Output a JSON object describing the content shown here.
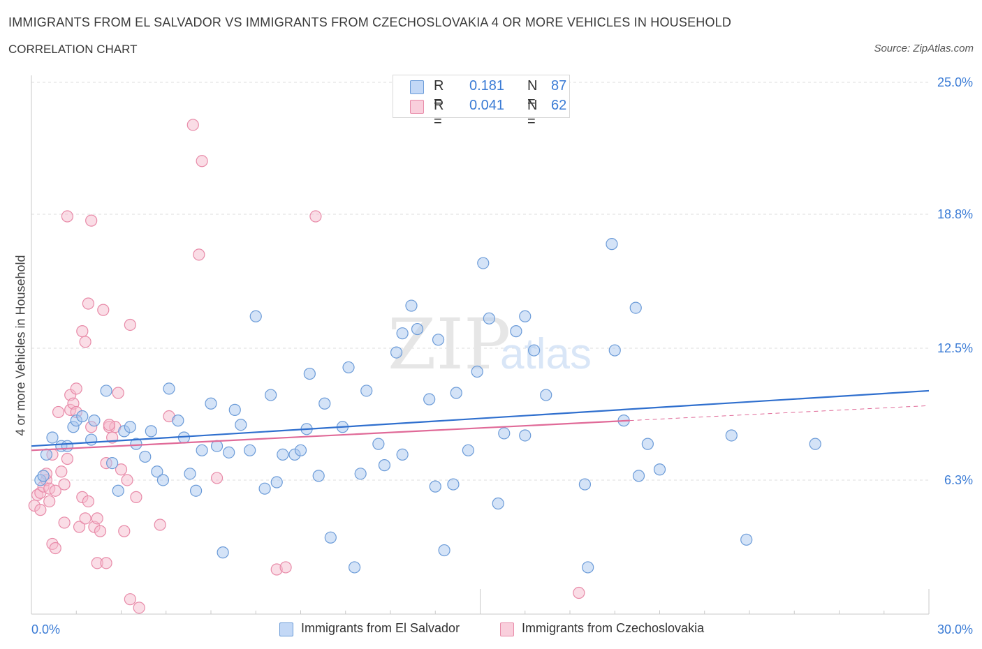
{
  "header": {
    "title": "IMMIGRANTS FROM EL SALVADOR VS IMMIGRANTS FROM CZECHOSLOVAKIA 4 OR MORE VEHICLES IN HOUSEHOLD",
    "subtitle": "CORRELATION CHART",
    "source": "Source: ZipAtlas.com"
  },
  "colors": {
    "blue_fill": "#aac8f0",
    "blue_stroke": "#6b9bd8",
    "blue_line": "#2f6fce",
    "pink_fill": "#f6bccd",
    "pink_stroke": "#e88aa8",
    "pink_line": "#e06a98",
    "axis_label": "#3a7bd5",
    "grid": "#dcdcdc"
  },
  "legend": {
    "rows": [
      {
        "r_label": "R =",
        "r_value": "0.181",
        "n_label": "N =",
        "n_value": "87"
      },
      {
        "r_label": "R =",
        "r_value": "0.041",
        "n_label": "N =",
        "n_value": "62"
      }
    ]
  },
  "bottom_legend": {
    "series1": "Immigrants from El Salvador",
    "series2": "Immigrants from Czechoslovakia"
  },
  "watermark": {
    "zip": "ZIP",
    "atlas": "atlas"
  },
  "chart_data": {
    "type": "scatter",
    "title": "IMMIGRANTS FROM EL SALVADOR VS IMMIGRANTS FROM CZECHOSLOVAKIA 4 OR MORE VEHICLES IN HOUSEHOLD",
    "xlabel": "",
    "ylabel": "4 or more Vehicles in Household",
    "xlim": [
      0,
      30
    ],
    "ylim": [
      0,
      25
    ],
    "x_tick_labels": [
      "0.0%",
      "30.0%"
    ],
    "y_ticks": [
      6.3,
      12.5,
      18.8,
      25.0
    ],
    "y_tick_labels": [
      "6.3%",
      "12.5%",
      "18.8%",
      "25.0%"
    ],
    "grid": true,
    "legend_position": "top-center",
    "series": [
      {
        "name": "Immigrants from El Salvador",
        "r": 0.181,
        "n": 87,
        "trend": {
          "x": [
            0,
            30
          ],
          "y": [
            7.9,
            10.5
          ]
        },
        "points": [
          [
            0.3,
            6.3
          ],
          [
            0.4,
            6.5
          ],
          [
            0.5,
            7.5
          ],
          [
            0.7,
            8.3
          ],
          [
            1.0,
            7.9
          ],
          [
            1.2,
            7.9
          ],
          [
            1.4,
            8.8
          ],
          [
            1.5,
            9.1
          ],
          [
            1.7,
            9.3
          ],
          [
            2.0,
            8.2
          ],
          [
            2.1,
            9.1
          ],
          [
            2.5,
            10.5
          ],
          [
            2.7,
            7.1
          ],
          [
            2.9,
            5.8
          ],
          [
            3.1,
            8.6
          ],
          [
            3.3,
            8.8
          ],
          [
            3.5,
            8.0
          ],
          [
            3.8,
            7.4
          ],
          [
            4.0,
            8.6
          ],
          [
            4.2,
            6.7
          ],
          [
            4.4,
            6.3
          ],
          [
            4.6,
            10.6
          ],
          [
            4.9,
            9.1
          ],
          [
            5.1,
            8.3
          ],
          [
            5.3,
            6.6
          ],
          [
            5.5,
            5.8
          ],
          [
            5.7,
            7.7
          ],
          [
            6.0,
            9.9
          ],
          [
            6.2,
            7.9
          ],
          [
            6.4,
            2.9
          ],
          [
            6.6,
            7.6
          ],
          [
            6.8,
            9.6
          ],
          [
            7.0,
            8.9
          ],
          [
            7.3,
            7.7
          ],
          [
            7.5,
            14.0
          ],
          [
            7.8,
            5.9
          ],
          [
            8.0,
            10.3
          ],
          [
            8.2,
            6.2
          ],
          [
            8.4,
            7.5
          ],
          [
            8.8,
            7.5
          ],
          [
            9.0,
            7.7
          ],
          [
            9.2,
            8.7
          ],
          [
            9.3,
            11.3
          ],
          [
            9.6,
            6.5
          ],
          [
            9.8,
            9.9
          ],
          [
            10.0,
            3.6
          ],
          [
            10.4,
            8.8
          ],
          [
            10.6,
            11.6
          ],
          [
            10.8,
            2.2
          ],
          [
            11.0,
            6.6
          ],
          [
            11.2,
            10.5
          ],
          [
            11.6,
            8.0
          ],
          [
            11.8,
            7.0
          ],
          [
            12.2,
            12.3
          ],
          [
            12.4,
            13.2
          ],
          [
            12.4,
            7.5
          ],
          [
            12.7,
            14.5
          ],
          [
            12.9,
            13.4
          ],
          [
            13.3,
            10.1
          ],
          [
            13.5,
            6.0
          ],
          [
            13.6,
            12.9
          ],
          [
            13.8,
            3.0
          ],
          [
            14.1,
            6.1
          ],
          [
            14.2,
            10.4
          ],
          [
            14.6,
            7.7
          ],
          [
            14.9,
            11.4
          ],
          [
            15.1,
            16.5
          ],
          [
            15.3,
            13.9
          ],
          [
            15.6,
            5.2
          ],
          [
            15.8,
            8.5
          ],
          [
            16.2,
            13.3
          ],
          [
            16.5,
            14.0
          ],
          [
            16.5,
            8.4
          ],
          [
            16.8,
            12.4
          ],
          [
            17.2,
            10.3
          ],
          [
            18.5,
            6.1
          ],
          [
            18.6,
            2.2
          ],
          [
            19.4,
            17.4
          ],
          [
            19.5,
            12.4
          ],
          [
            19.8,
            9.1
          ],
          [
            20.2,
            14.4
          ],
          [
            20.3,
            6.5
          ],
          [
            20.6,
            8.0
          ],
          [
            21.0,
            6.8
          ],
          [
            23.4,
            8.4
          ],
          [
            23.9,
            3.5
          ],
          [
            26.2,
            8.0
          ]
        ]
      },
      {
        "name": "Immigrants from Czechoslovakia",
        "r": 0.041,
        "n": 62,
        "trend": {
          "x": [
            0,
            20
          ],
          "y": [
            7.7,
            9.1
          ]
        },
        "trend_dashed": {
          "x": [
            20,
            30
          ],
          "y": [
            9.1,
            9.8
          ]
        },
        "points": [
          [
            0.1,
            5.1
          ],
          [
            0.2,
            5.6
          ],
          [
            0.3,
            5.7
          ],
          [
            0.4,
            6.0
          ],
          [
            0.5,
            6.3
          ],
          [
            0.5,
            6.6
          ],
          [
            0.6,
            5.9
          ],
          [
            0.7,
            7.5
          ],
          [
            0.7,
            3.3
          ],
          [
            0.8,
            3.1
          ],
          [
            0.9,
            9.5
          ],
          [
            1.0,
            6.7
          ],
          [
            1.1,
            6.1
          ],
          [
            1.1,
            4.3
          ],
          [
            1.2,
            18.7
          ],
          [
            1.3,
            10.3
          ],
          [
            1.3,
            9.6
          ],
          [
            1.4,
            9.9
          ],
          [
            1.5,
            9.5
          ],
          [
            1.5,
            10.6
          ],
          [
            1.6,
            4.1
          ],
          [
            1.7,
            5.5
          ],
          [
            1.7,
            13.3
          ],
          [
            1.8,
            12.8
          ],
          [
            1.8,
            4.5
          ],
          [
            1.9,
            5.3
          ],
          [
            1.9,
            14.6
          ],
          [
            2.0,
            8.8
          ],
          [
            2.0,
            18.5
          ],
          [
            2.1,
            4.1
          ],
          [
            2.2,
            2.4
          ],
          [
            2.2,
            4.5
          ],
          [
            2.3,
            3.9
          ],
          [
            2.4,
            14.3
          ],
          [
            2.5,
            2.4
          ],
          [
            2.5,
            7.1
          ],
          [
            2.6,
            8.8
          ],
          [
            2.7,
            8.3
          ],
          [
            2.8,
            8.8
          ],
          [
            2.9,
            10.4
          ],
          [
            3.1,
            3.9
          ],
          [
            3.2,
            6.3
          ],
          [
            3.3,
            0.7
          ],
          [
            3.3,
            13.6
          ],
          [
            3.5,
            5.5
          ],
          [
            3.6,
            0.3
          ],
          [
            4.3,
            4.2
          ],
          [
            4.6,
            9.3
          ],
          [
            5.4,
            23.0
          ],
          [
            5.6,
            16.9
          ],
          [
            5.7,
            21.3
          ],
          [
            6.2,
            6.4
          ],
          [
            8.2,
            2.1
          ],
          [
            8.5,
            2.2
          ],
          [
            9.5,
            18.7
          ],
          [
            18.3,
            1.0
          ],
          [
            0.3,
            4.9
          ],
          [
            0.6,
            5.3
          ],
          [
            0.8,
            5.8
          ],
          [
            1.2,
            7.3
          ],
          [
            2.6,
            8.9
          ],
          [
            3.0,
            6.8
          ]
        ]
      }
    ]
  }
}
